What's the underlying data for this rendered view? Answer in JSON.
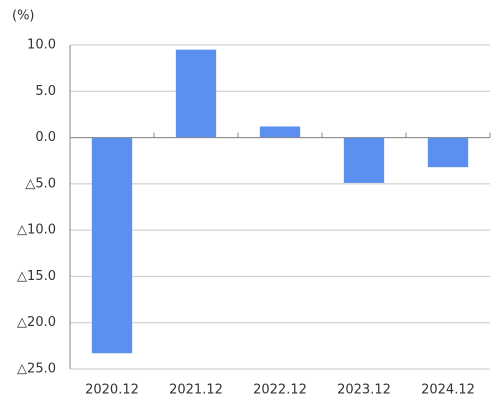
{
  "chart_data": {
    "type": "bar",
    "y_unit_label": "(%)",
    "categories": [
      "2020.12",
      "2021.12",
      "2022.12",
      "2023.12",
      "2024.12"
    ],
    "values": [
      -23.3,
      9.5,
      1.2,
      -4.9,
      -3.2
    ],
    "color": "#5b8ff0",
    "ylim": [
      -25,
      10
    ],
    "yticks": [
      {
        "value": 10,
        "label": "10.0"
      },
      {
        "value": 5,
        "label": "5.0"
      },
      {
        "value": 0,
        "label": "0.0"
      },
      {
        "value": -5,
        "label": "△5.0"
      },
      {
        "value": -10,
        "label": "△10.0"
      },
      {
        "value": -15,
        "label": "△15.0"
      },
      {
        "value": -20,
        "label": "△20.0"
      },
      {
        "value": -25,
        "label": "△25.0"
      }
    ],
    "grid": true
  }
}
